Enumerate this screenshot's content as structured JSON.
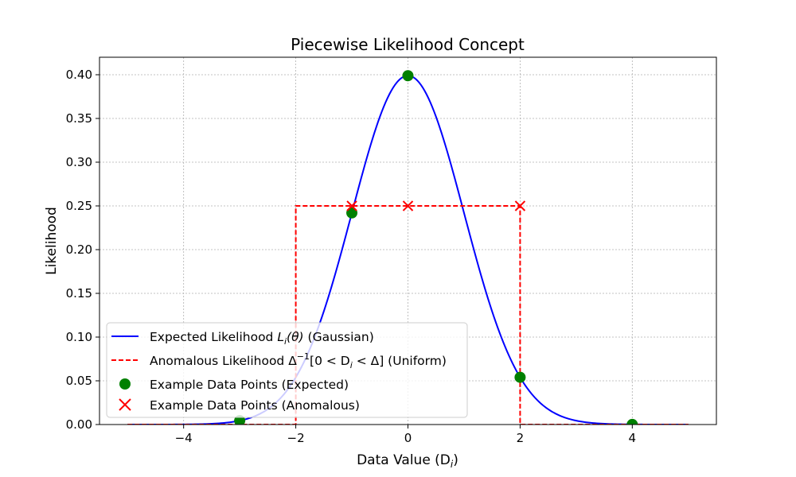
{
  "chart_data": {
    "type": "line",
    "title": "Piecewise Likelihood Concept",
    "xlabel": "Data Value (D",
    "xlabel_sub": "i",
    "xlabel_end": ")",
    "ylabel": "Likelihood",
    "xlim": [
      -5.5,
      5.5
    ],
    "ylim": [
      0,
      0.42
    ],
    "xticks": [
      -4,
      -2,
      0,
      2,
      4
    ],
    "xtick_labels": [
      "−4",
      "−2",
      "0",
      "2",
      "4"
    ],
    "yticks": [
      0.0,
      0.05,
      0.1,
      0.15,
      0.2,
      0.25,
      0.3,
      0.35,
      0.4
    ],
    "ytick_labels": [
      "0.00",
      "0.05",
      "0.10",
      "0.15",
      "0.20",
      "0.25",
      "0.30",
      "0.35",
      "0.40"
    ],
    "grid": true,
    "legend_position": "lower-left",
    "gaussian": {
      "mean": 0,
      "std": 1,
      "x_range": [
        -5,
        5
      ],
      "color": "#0000ff"
    },
    "uniform": {
      "x": [
        -5,
        -2,
        -2,
        2,
        2,
        5
      ],
      "y": [
        0,
        0,
        0.25,
        0.25,
        0,
        0
      ],
      "color": "#ff0000"
    },
    "expected_points": {
      "x": [
        -3,
        -1,
        0,
        2,
        4
      ],
      "y": [
        0.0044,
        0.242,
        0.3989,
        0.054,
        0.0001
      ],
      "color": "#008000"
    },
    "anomalous_points": {
      "x": [
        -1,
        0,
        2
      ],
      "y": [
        0.25,
        0.25,
        0.25
      ],
      "color": "#ff0000"
    },
    "legend": {
      "gaussian_a": "Expected Likelihood ",
      "gaussian_L": "L",
      "gaussian_i": "i",
      "gaussian_theta": "(θ)",
      "gaussian_b": " (Gaussian)",
      "uniform_a": "Anomalous Likelihood Δ",
      "uniform_sup": "−1",
      "uniform_b": "[0 < D",
      "uniform_sub": "i",
      "uniform_c": " < Δ] (Uniform)",
      "expected": "Example Data Points (Expected)",
      "anomalous": "Example Data Points (Anomalous)"
    }
  }
}
